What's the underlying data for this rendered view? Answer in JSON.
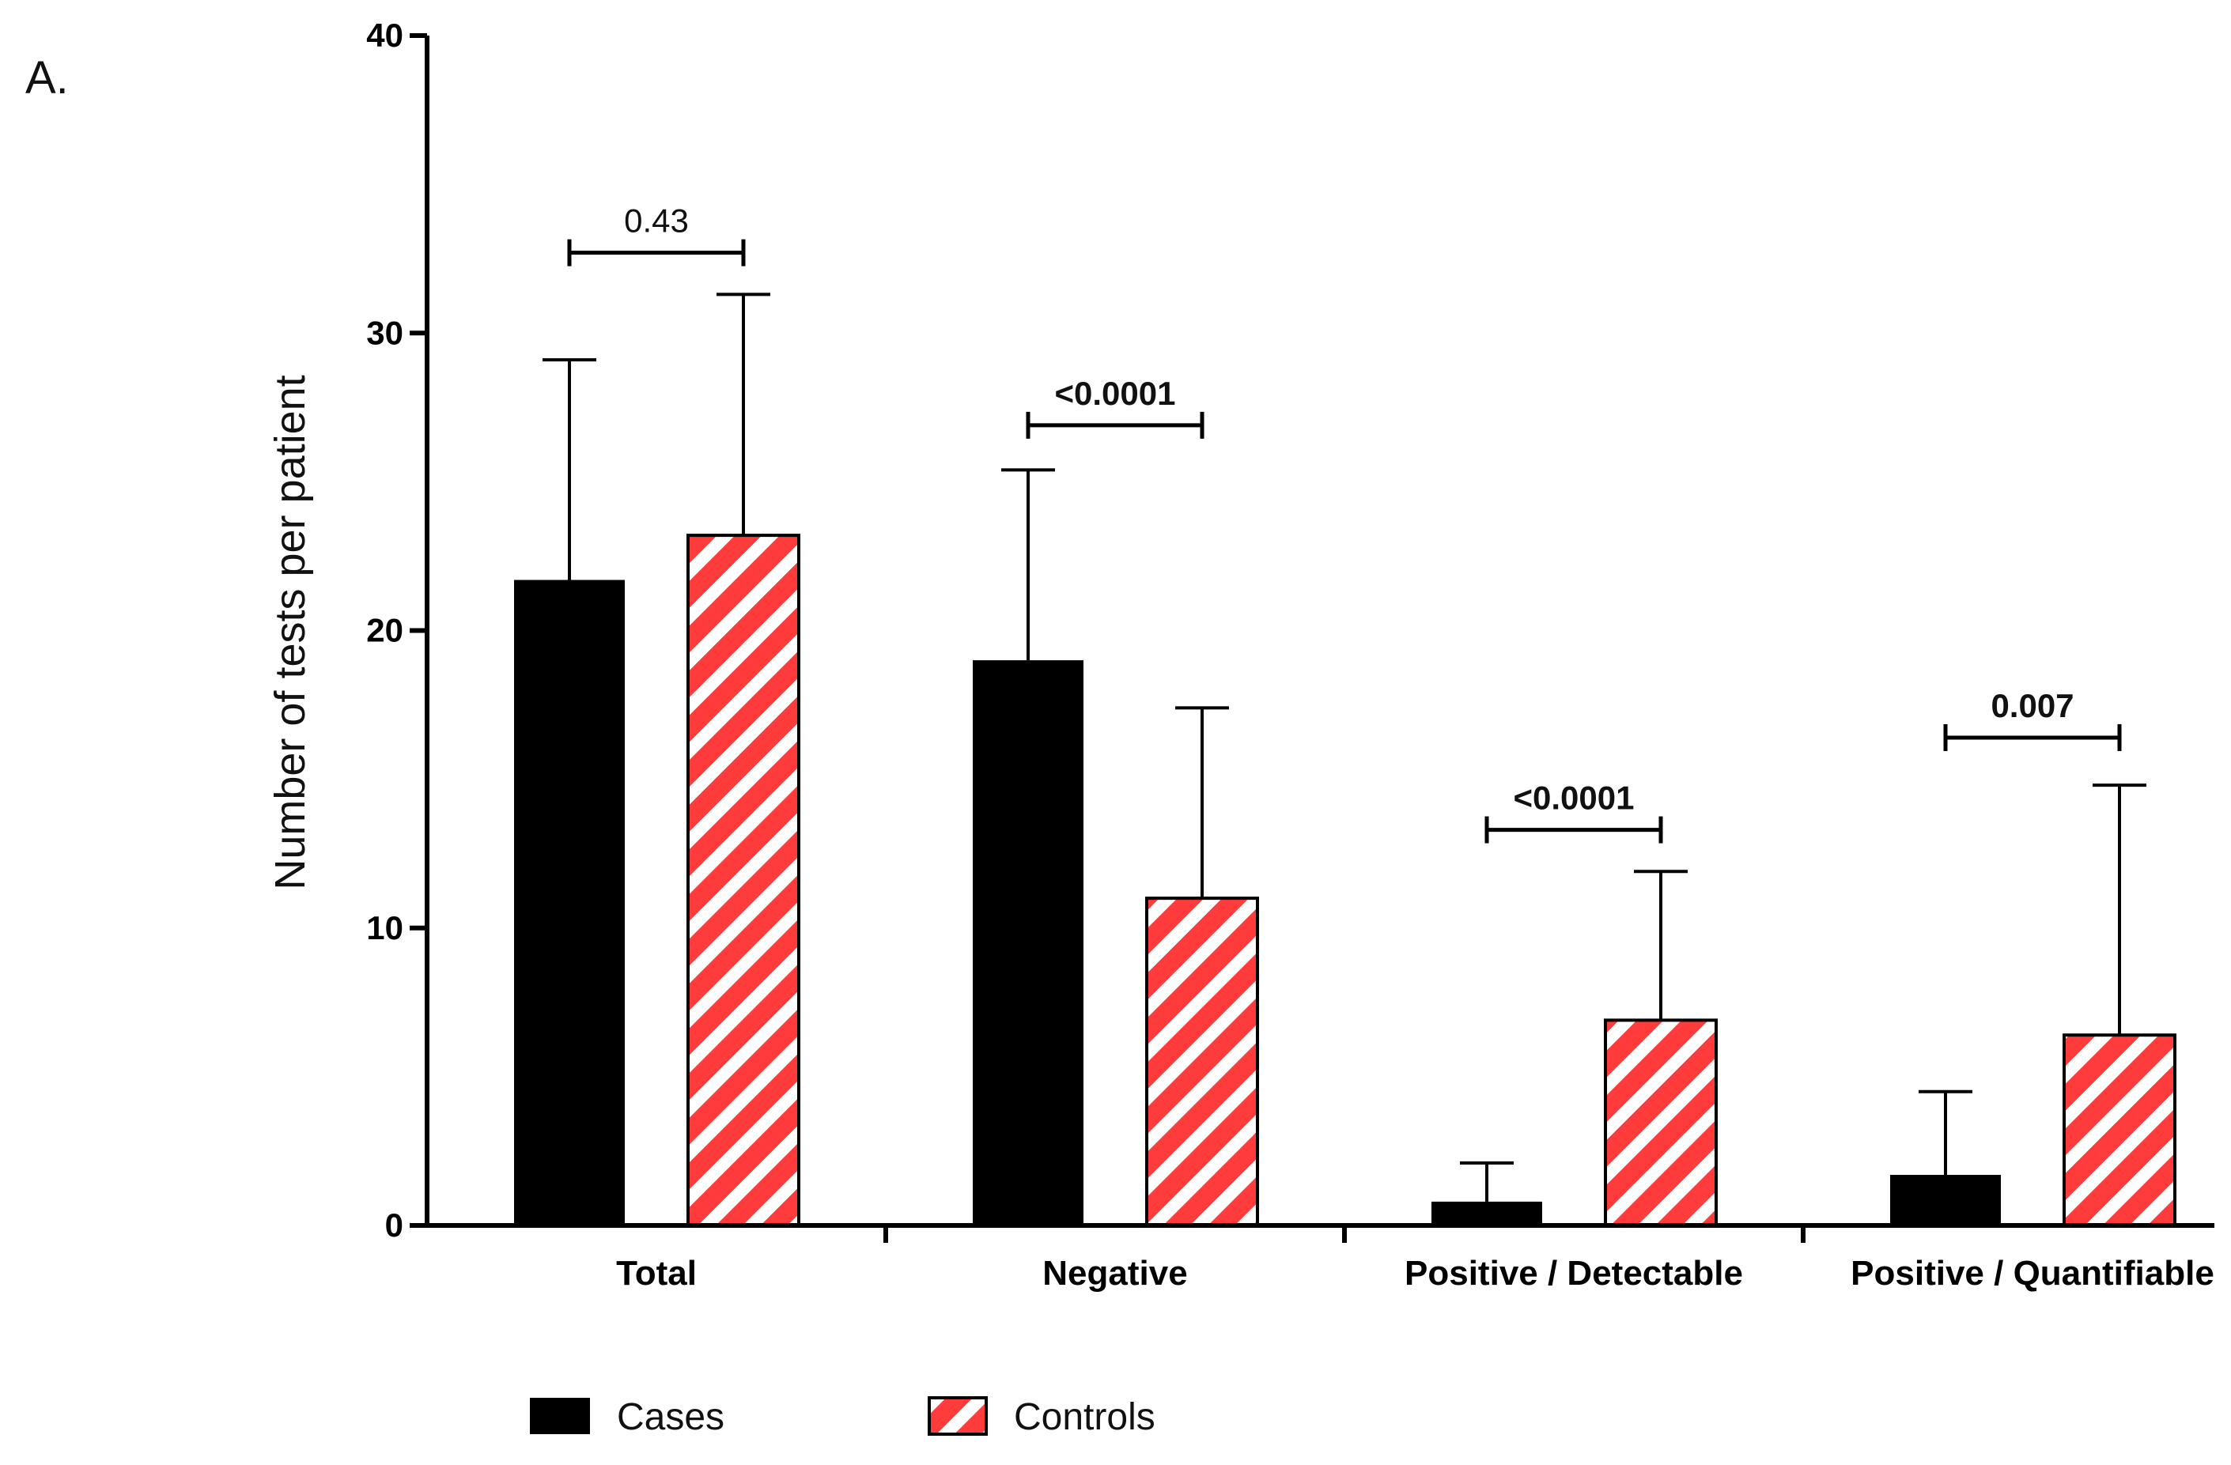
{
  "panel_label": "A.",
  "chart_data": {
    "type": "bar",
    "title": "",
    "xlabel": "",
    "ylabel": "Number of tests per patient",
    "ylim": [
      0,
      40
    ],
    "yticks": [
      0,
      10,
      20,
      30,
      40
    ],
    "categories": [
      "Total",
      "Negative",
      "Positive / Detectable",
      "Positive / Quantifiable"
    ],
    "series": [
      {
        "name": "Cases",
        "color": "#000000",
        "pattern": "solid",
        "values": [
          21.7,
          19.0,
          0.8,
          1.7
        ],
        "error_upper": [
          29.1,
          25.4,
          2.1,
          4.5
        ]
      },
      {
        "name": "Controls",
        "color": "#ff3b3b",
        "pattern": "diagonal-stripes",
        "values": [
          23.2,
          11.0,
          6.9,
          6.4
        ],
        "error_upper": [
          31.3,
          17.4,
          11.9,
          14.8
        ]
      }
    ],
    "annotations": [
      {
        "category": "Total",
        "text": "0.43",
        "bold": false,
        "bracket_y": 32.7
      },
      {
        "category": "Negative",
        "text": "<0.0001",
        "bold": true,
        "bracket_y": 26.9
      },
      {
        "category": "Positive / Detectable",
        "text": "<0.0001",
        "bold": true,
        "bracket_y": 13.3
      },
      {
        "category": "Positive / Quantifiable",
        "text": "0.007",
        "bold": true,
        "bracket_y": 16.4
      }
    ],
    "legend": {
      "placement": "bottom-left",
      "entries": [
        "Cases",
        "Controls"
      ]
    }
  }
}
